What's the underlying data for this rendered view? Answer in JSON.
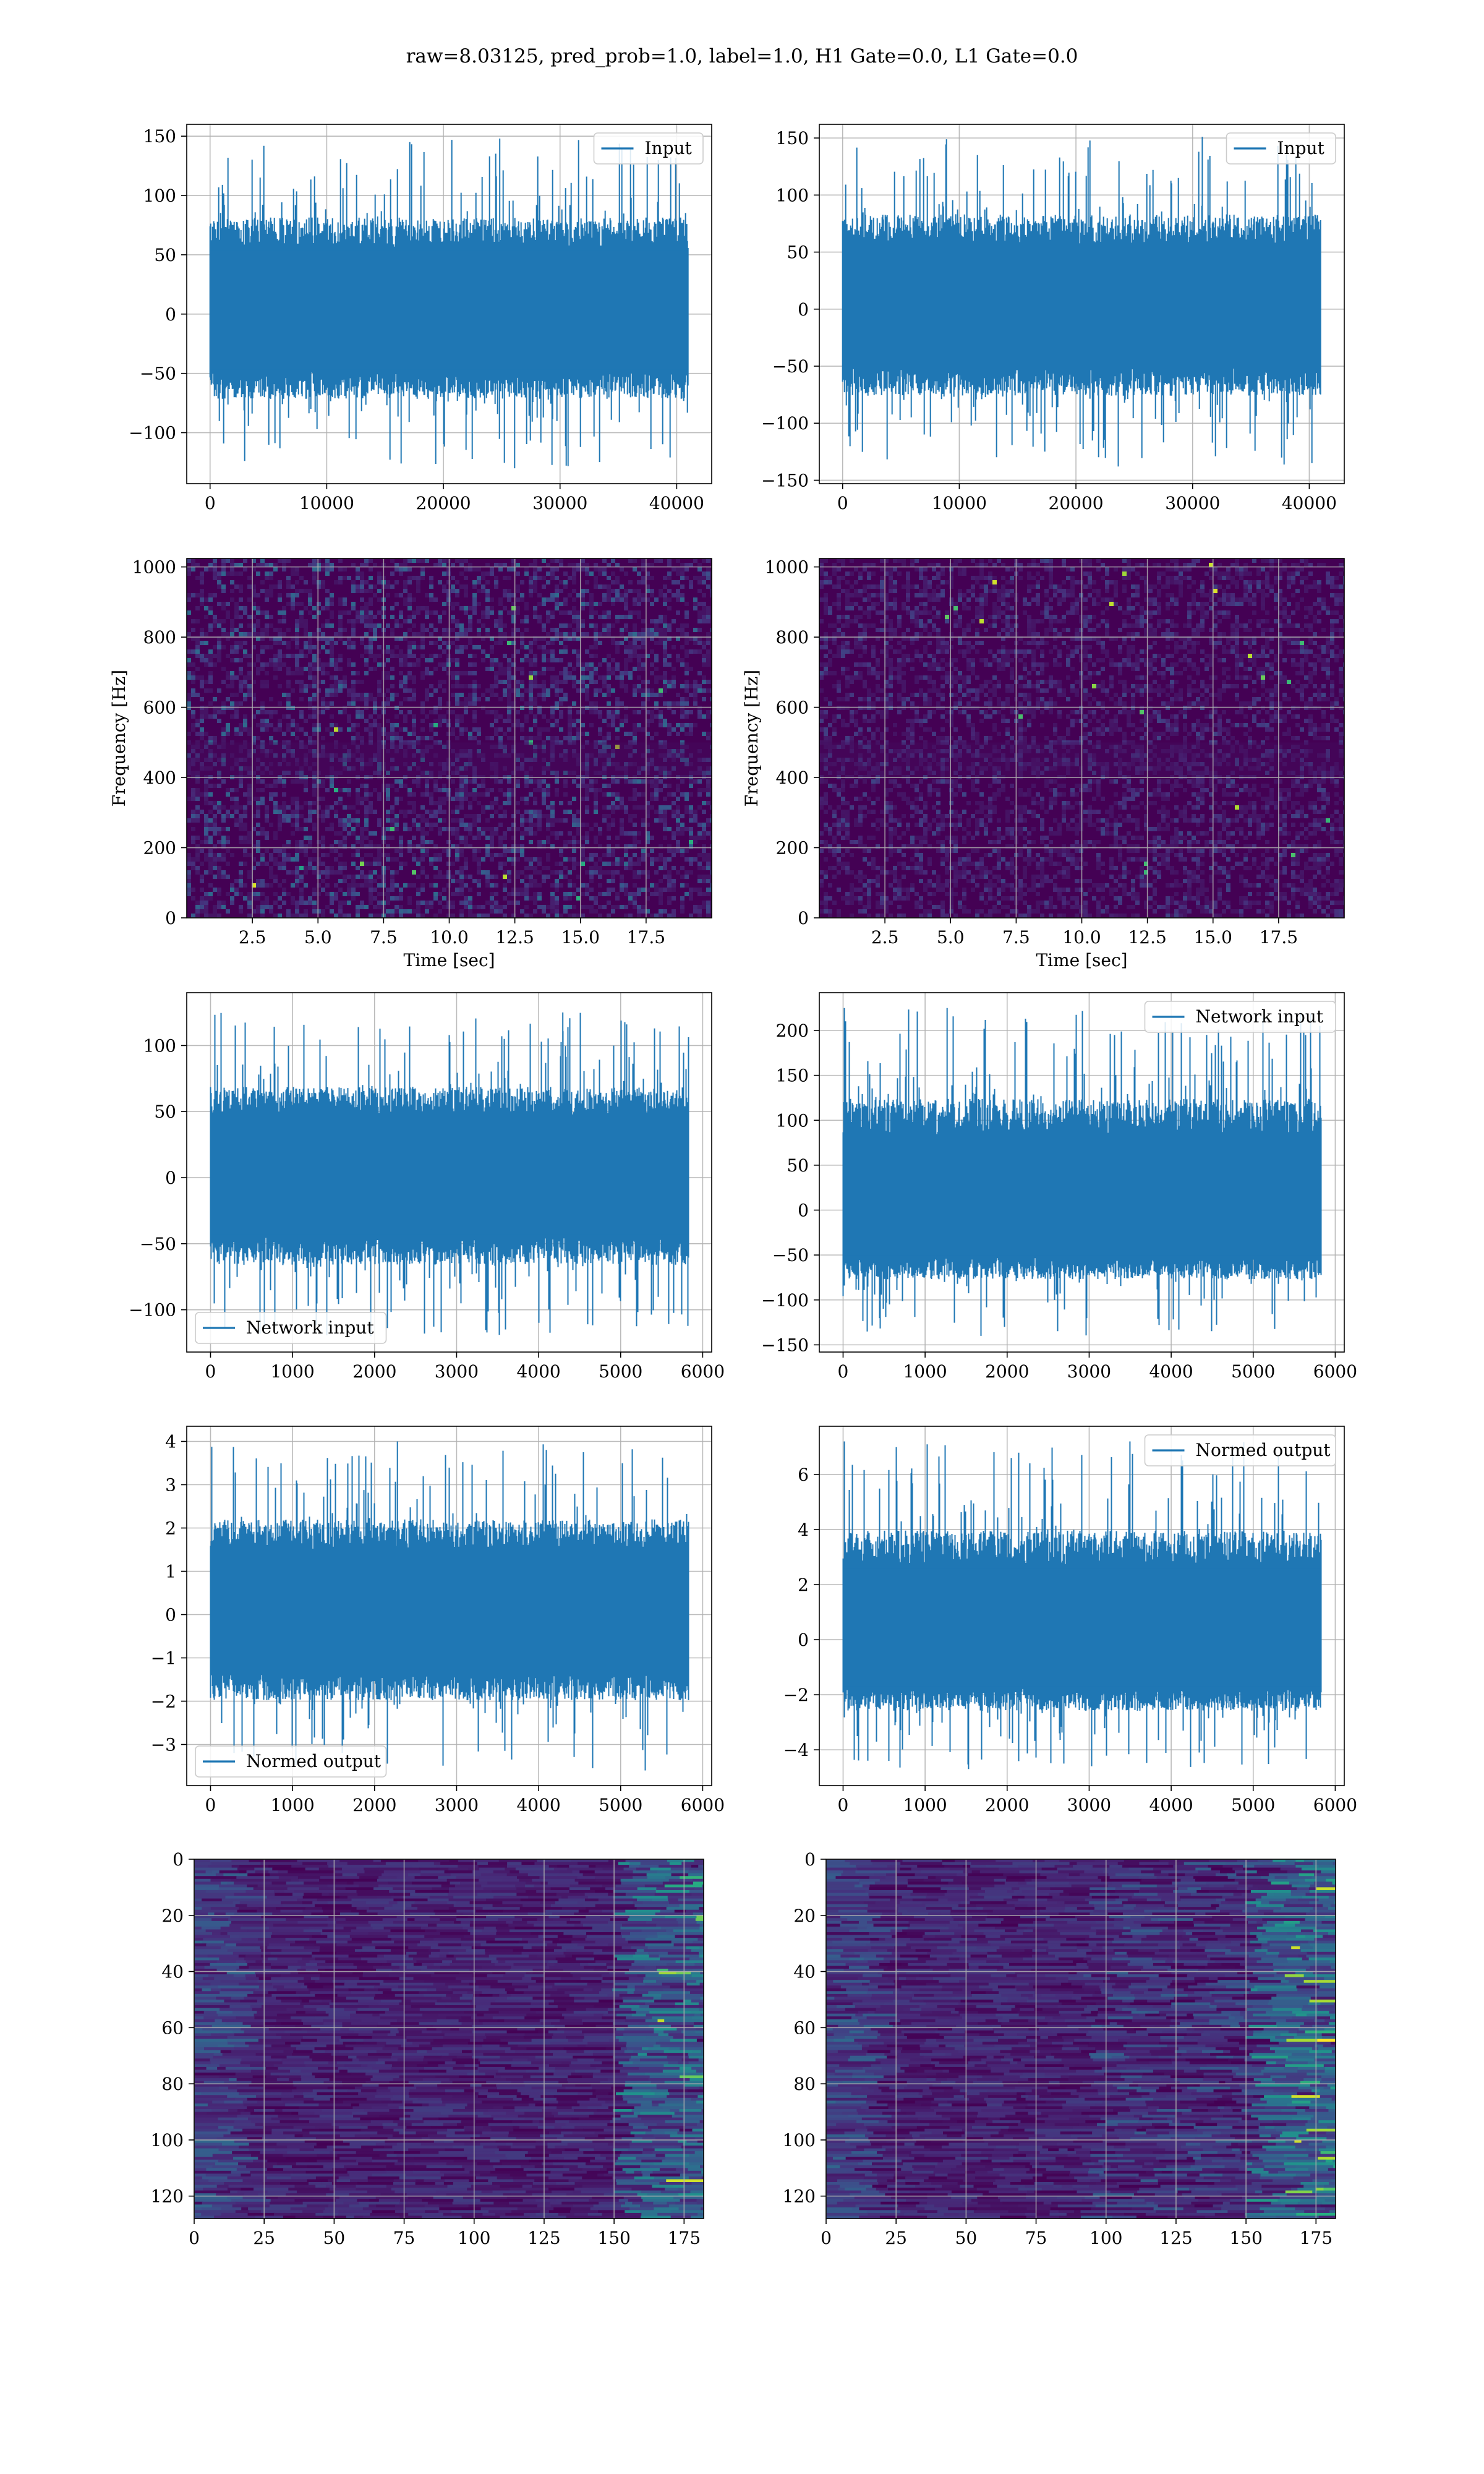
{
  "figure": {
    "suptitle": "raw=8.03125, pred_prob=1.0, label=1.0, H1 Gate=0.0, L1 Gate=0.0"
  },
  "colors": {
    "line": "#1f77b4",
    "grid": "#b0b0b0",
    "viridis_low": "#440154",
    "viridis_high": "#fde725"
  },
  "chart_data": [
    {
      "type": "line",
      "panel": "row1-left",
      "series": [
        {
          "name": "Input",
          "x_range": [
            0,
            40960
          ],
          "amplitude_range": [
            -130,
            148
          ]
        }
      ],
      "legend": "upper right",
      "xlim": [
        -2000,
        43000
      ],
      "ylim": [
        -143,
        160
      ],
      "xticks": [
        0,
        10000,
        20000,
        30000,
        40000
      ],
      "yticks": [
        -100,
        -50,
        0,
        50,
        100,
        150
      ],
      "grid": true
    },
    {
      "type": "line",
      "panel": "row1-right",
      "series": [
        {
          "name": "Input",
          "x_range": [
            0,
            40960
          ],
          "amplitude_range": [
            -138,
            151
          ]
        }
      ],
      "legend": "upper right",
      "xlim": [
        -2000,
        43000
      ],
      "ylim": [
        -153,
        162
      ],
      "xticks": [
        0,
        10000,
        20000,
        30000,
        40000
      ],
      "yticks": [
        -150,
        -100,
        -50,
        0,
        50,
        100,
        150
      ],
      "grid": true
    },
    {
      "type": "heatmap",
      "panel": "row2-left",
      "xlabel": "Time [sec]",
      "ylabel": "Frequency [Hz]",
      "xlim": [
        0,
        20
      ],
      "ylim": [
        0,
        1024
      ],
      "xticks": [
        2.5,
        5.0,
        7.5,
        10.0,
        12.5,
        15.0,
        17.5
      ],
      "yticks": [
        0,
        200,
        400,
        600,
        800,
        1000
      ],
      "colormap": "viridis",
      "grid": true
    },
    {
      "type": "heatmap",
      "panel": "row2-right",
      "xlabel": "Time [sec]",
      "ylabel": "Frequency [Hz]",
      "xlim": [
        0,
        20
      ],
      "ylim": [
        0,
        1024
      ],
      "xticks": [
        2.5,
        5.0,
        7.5,
        10.0,
        12.5,
        15.0,
        17.5
      ],
      "yticks": [
        0,
        200,
        400,
        600,
        800,
        1000
      ],
      "colormap": "viridis",
      "grid": true
    },
    {
      "type": "line",
      "panel": "row3-left",
      "series": [
        {
          "name": "Network input",
          "x_range": [
            0,
            5830
          ],
          "amplitude_range": [
            -120,
            125
          ]
        }
      ],
      "legend": "lower left",
      "xlim": [
        -290,
        6110
      ],
      "ylim": [
        -132,
        140
      ],
      "xticks": [
        0,
        1000,
        2000,
        3000,
        4000,
        5000,
        6000
      ],
      "yticks": [
        -100,
        -50,
        0,
        50,
        100
      ],
      "grid": true
    },
    {
      "type": "line",
      "panel": "row3-right",
      "series": [
        {
          "name": "Network input",
          "x_range": [
            0,
            5830
          ],
          "amplitude_range": [
            -140,
            225
          ]
        }
      ],
      "legend": "upper right",
      "xlim": [
        -290,
        6110
      ],
      "ylim": [
        -158,
        242
      ],
      "xticks": [
        0,
        1000,
        2000,
        3000,
        4000,
        5000,
        6000
      ],
      "yticks": [
        -150,
        -100,
        -50,
        0,
        50,
        100,
        150,
        200
      ],
      "grid": true
    },
    {
      "type": "line",
      "panel": "row4-left",
      "series": [
        {
          "name": "Normed output",
          "x_range": [
            0,
            5830
          ],
          "amplitude_range": [
            -3.6,
            4.0
          ]
        }
      ],
      "legend": "lower left",
      "xlim": [
        -290,
        6110
      ],
      "ylim": [
        -3.95,
        4.35
      ],
      "xticks": [
        0,
        1000,
        2000,
        3000,
        4000,
        5000,
        6000
      ],
      "yticks": [
        -3,
        -2,
        -1,
        0,
        1,
        2,
        3,
        4
      ],
      "grid": true
    },
    {
      "type": "line",
      "panel": "row4-right",
      "series": [
        {
          "name": "Normed output",
          "x_range": [
            0,
            5830
          ],
          "amplitude_range": [
            -4.7,
            7.2
          ]
        }
      ],
      "legend": "upper right",
      "xlim": [
        -290,
        6110
      ],
      "ylim": [
        -5.3,
        7.75
      ],
      "xticks": [
        0,
        1000,
        2000,
        3000,
        4000,
        5000,
        6000
      ],
      "yticks": [
        -4,
        -2,
        0,
        2,
        4,
        6
      ],
      "grid": true
    },
    {
      "type": "heatmap",
      "panel": "row5-left",
      "xlim": [
        0,
        182
      ],
      "ylim": [
        128,
        0
      ],
      "xticks": [
        0,
        25,
        50,
        75,
        100,
        125,
        150,
        175
      ],
      "yticks": [
        0,
        20,
        40,
        60,
        80,
        100,
        120
      ],
      "colormap": "viridis",
      "grid": true
    },
    {
      "type": "heatmap",
      "panel": "row5-right",
      "xlim": [
        0,
        182
      ],
      "ylim": [
        128,
        0
      ],
      "xticks": [
        0,
        25,
        50,
        75,
        100,
        125,
        150,
        175
      ],
      "yticks": [
        0,
        20,
        40,
        60,
        80,
        100,
        120
      ],
      "colormap": "viridis",
      "grid": true
    }
  ]
}
